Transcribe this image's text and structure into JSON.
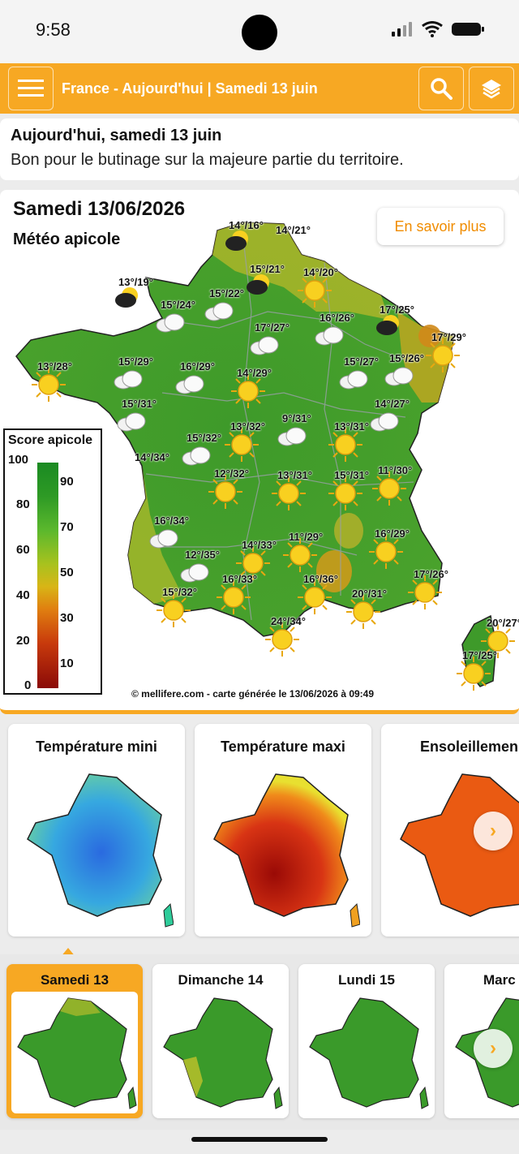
{
  "status": {
    "time": "9:58"
  },
  "header": {
    "title": "France - Aujourd'hui | Samedi 13 juin"
  },
  "summary": {
    "title": "Aujourd'hui, samedi 13 juin",
    "text": "Bon pour le butinage sur la majeure partie du territoire."
  },
  "map": {
    "date": "Samedi 13/06/2026",
    "subtitle": "Météo apicole",
    "more_button": "En savoir plus",
    "legend_title": "Score apicole",
    "legend_ticks_left": [
      "100",
      "80",
      "60",
      "40",
      "20",
      "0"
    ],
    "legend_ticks_right": [
      "90",
      "70",
      "50",
      "30",
      "10"
    ],
    "copyright": "© mellifere.com - carte générée le 13/06/2026 à 09:49",
    "stations": [
      {
        "label": "14°/16°",
        "icon": "storm-icon"
      },
      {
        "label": "14°/21°",
        "icon": "none"
      },
      {
        "label": "15°/21°",
        "icon": "storm-icon"
      },
      {
        "label": "14°/20°",
        "icon": "sun-icon"
      },
      {
        "label": "13°/19°",
        "icon": "storm-icon"
      },
      {
        "label": "15°/22°",
        "icon": "cloud-icon"
      },
      {
        "label": "15°/24°",
        "icon": "cloud-icon"
      },
      {
        "label": "16°/26°",
        "icon": "cloud-icon"
      },
      {
        "label": "17°/25°",
        "icon": "storm-icon"
      },
      {
        "label": "17°/27°",
        "icon": "cloud-icon"
      },
      {
        "label": "17°/29°",
        "icon": "sun-icon"
      },
      {
        "label": "15°/29°",
        "icon": "cloud-icon"
      },
      {
        "label": "16°/29°",
        "icon": "cloud-icon"
      },
      {
        "label": "13°/28°",
        "icon": "sun-icon"
      },
      {
        "label": "15°/27°",
        "icon": "cloud-icon"
      },
      {
        "label": "15°/26°",
        "icon": "cloud-icon"
      },
      {
        "label": "14°/29°",
        "icon": "sun-icon"
      },
      {
        "label": "15°/31°",
        "icon": "cloud-icon"
      },
      {
        "label": "14°/27°",
        "icon": "cloud-icon"
      },
      {
        "label": "9°/31°",
        "icon": "cloud-icon"
      },
      {
        "label": "13°/32°",
        "icon": "sun-icon"
      },
      {
        "label": "13°/31°",
        "icon": "sun-icon"
      },
      {
        "label": "15°/32°",
        "icon": "cloud-icon"
      },
      {
        "label": "14°/34°",
        "icon": "none"
      },
      {
        "label": "12°/32°",
        "icon": "sun-icon"
      },
      {
        "label": "13°/31°",
        "icon": "sun-icon"
      },
      {
        "label": "15°/31°",
        "icon": "sun-icon"
      },
      {
        "label": "11°/30°",
        "icon": "sun-icon"
      },
      {
        "label": "16°/34°",
        "icon": "cloud-icon"
      },
      {
        "label": "11°/29°",
        "icon": "sun-icon"
      },
      {
        "label": "16°/29°",
        "icon": "sun-icon"
      },
      {
        "label": "12°/35°",
        "icon": "cloud-icon"
      },
      {
        "label": "14°/33°",
        "icon": "sun-icon"
      },
      {
        "label": "15°/32°",
        "icon": "sun-icon"
      },
      {
        "label": "16°/33°",
        "icon": "sun-icon"
      },
      {
        "label": "16°/36°",
        "icon": "sun-icon"
      },
      {
        "label": "20°/31°",
        "icon": "sun-icon"
      },
      {
        "label": "17°/26°",
        "icon": "sun-icon"
      },
      {
        "label": "24°/34°",
        "icon": "sun-icon"
      },
      {
        "label": "20°/27°",
        "icon": "sun-icon"
      },
      {
        "label": "17°/25°",
        "icon": "sun-icon"
      }
    ]
  },
  "thumbnails": [
    {
      "title": "Température mini"
    },
    {
      "title": "Température maxi"
    },
    {
      "title": "Ensoleillemen"
    }
  ],
  "days": [
    {
      "label": "Samedi 13",
      "active": true
    },
    {
      "label": "Dimanche 14",
      "active": false
    },
    {
      "label": "Lundi 15",
      "active": false
    },
    {
      "label": "Marc",
      "active": false
    }
  ],
  "colors": {
    "accent": "#f7a823",
    "green": "#3a9a2a"
  }
}
